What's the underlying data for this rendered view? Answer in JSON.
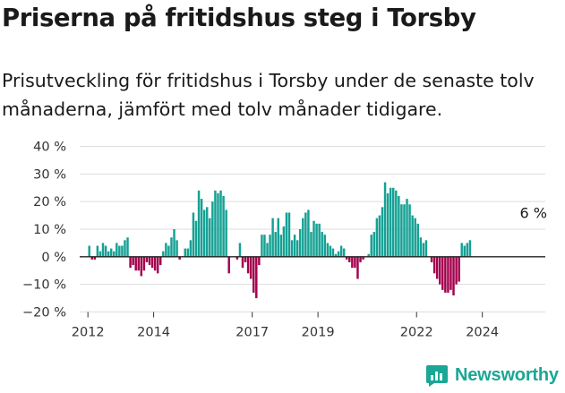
{
  "title": "Priserna på fritidshus steg i Torsby",
  "subtitle": "Prisutveckling för fritidshus i Torsby under de senaste tolv månaderna, jämfört med tolv månader tidigare.",
  "brand": {
    "name": "Newsworthy",
    "color": "#1aa795",
    "icon": "bar-chart-logo-icon"
  },
  "colors": {
    "positive": "#15a194",
    "negative": "#a3004d",
    "zero_line": "#222222",
    "grid": "#dddddd"
  },
  "chart_data": {
    "type": "bar",
    "title": "",
    "xlabel": "",
    "ylabel": "",
    "ylim": [
      -20,
      40
    ],
    "yticks": [
      40,
      30,
      20,
      10,
      0,
      -10,
      -20
    ],
    "ytick_labels": [
      "40 %",
      "30 %",
      "20 %",
      "10 %",
      "0 %",
      "−10 %",
      "−20 %"
    ],
    "x_range": [
      "2011-10",
      "2025-12"
    ],
    "xticks": [
      {
        "date": "2012-01",
        "label": "2012"
      },
      {
        "date": "2014-01",
        "label": "2014"
      },
      {
        "date": "2017-01",
        "label": "2017"
      },
      {
        "date": "2019-01",
        "label": "2019"
      },
      {
        "date": "2022-01",
        "label": "2022"
      },
      {
        "date": "2024-01",
        "label": "2024"
      }
    ],
    "grid": true,
    "start_month": "2012-01",
    "values": [
      4,
      -1,
      -1,
      4,
      2,
      5,
      4,
      2,
      3,
      2,
      5,
      4,
      4,
      6,
      7,
      -4,
      -3,
      -5,
      -5,
      -7,
      -5,
      -2,
      -3,
      -4,
      -5,
      -6,
      -3,
      2,
      5,
      4,
      7,
      10,
      6,
      -1,
      0,
      3,
      3,
      6,
      16,
      13,
      24,
      21,
      17,
      18,
      14,
      20,
      24,
      23,
      24,
      22,
      17,
      -6,
      0,
      0,
      -1,
      5,
      -4,
      -2,
      -6,
      -8,
      -13,
      -15,
      -3,
      8,
      8,
      5,
      8,
      14,
      9,
      14,
      8,
      11,
      16,
      16,
      6,
      8,
      6,
      10,
      14,
      16,
      17,
      9,
      13,
      12,
      12,
      9,
      8,
      5,
      4,
      3,
      1,
      2,
      4,
      3,
      -1,
      -2,
      -4,
      -4,
      -8,
      -2,
      -1,
      0,
      1,
      8,
      9,
      14,
      15,
      18,
      27,
      23,
      25,
      25,
      24,
      22,
      19,
      19,
      21,
      19,
      15,
      14,
      12,
      7,
      5,
      6,
      0,
      -2,
      -6,
      -8,
      -10,
      -12,
      -13,
      -13,
      -12,
      -14,
      -10,
      -9,
      5,
      4,
      5,
      6
    ],
    "annotations": [
      {
        "text": "6 %",
        "date": "2025-08",
        "value": 6
      }
    ]
  }
}
